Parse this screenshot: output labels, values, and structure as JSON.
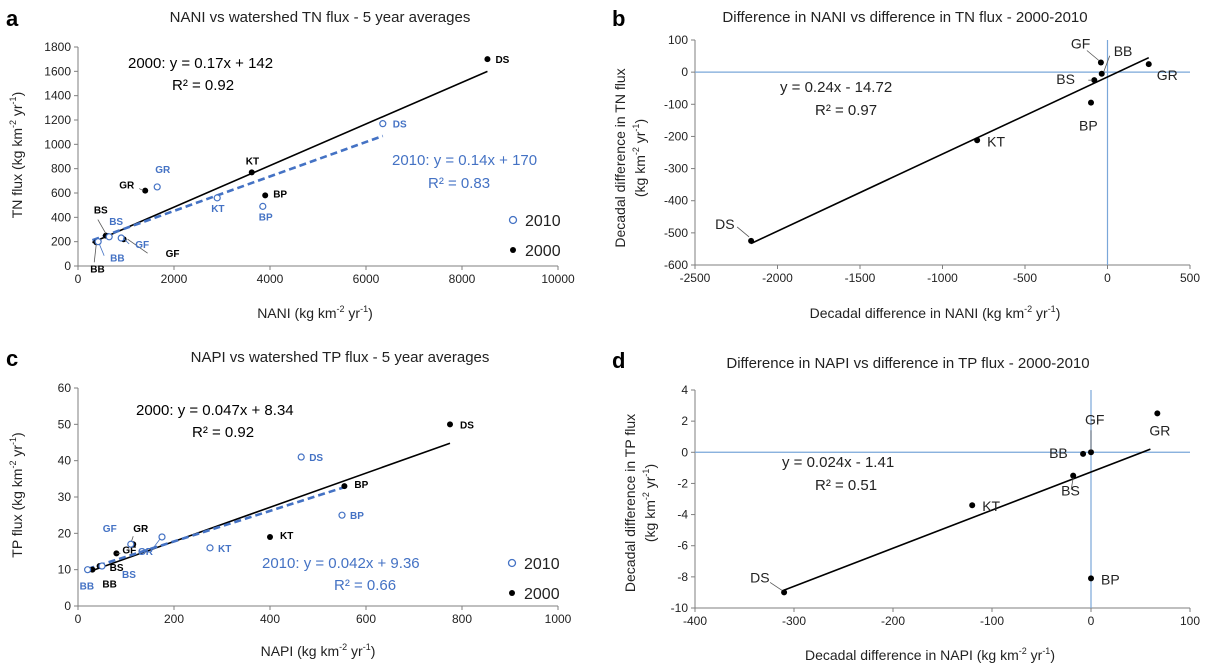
{
  "colors": {
    "y2000": "#000000",
    "y2010": "#4472c4",
    "ref": "#7aa7d9",
    "axis": "#7f7f7f"
  },
  "legend": {
    "y2010": "2010",
    "y2000": "2000"
  },
  "chart_data": [
    {
      "id": "a",
      "type": "scatter",
      "letter": "a",
      "title": "NANI vs watershed TN flux  - 5 year averages",
      "xlabel_main": "NANI (kg km",
      "xlabel_sup1": "-2",
      "xlabel_mid": " yr",
      "xlabel_sup2": "-1",
      "xlabel_end": ")",
      "ylabel_main": "TN flux (kg km",
      "ylabel_sup1": "-2",
      "ylabel_mid": " yr",
      "ylabel_sup2": "-1",
      "ylabel_end": ")",
      "xlim": [
        0,
        10000
      ],
      "ylim": [
        0,
        1800
      ],
      "xticks": [
        0,
        2000,
        4000,
        6000,
        8000,
        10000
      ],
      "yticks": [
        0,
        200,
        400,
        600,
        800,
        1000,
        1200,
        1400,
        1600,
        1800
      ],
      "series": [
        {
          "name": "2000",
          "points": [
            {
              "label": "DS",
              "x": 8530,
              "y": 1700
            },
            {
              "label": "KT",
              "x": 3620,
              "y": 770
            },
            {
              "label": "BP",
              "x": 3900,
              "y": 580
            },
            {
              "label": "GR",
              "x": 1400,
              "y": 620
            },
            {
              "label": "BS",
              "x": 580,
              "y": 250
            },
            {
              "label": "GF",
              "x": 950,
              "y": 220
            },
            {
              "label": "BB",
              "x": 380,
              "y": 195
            }
          ]
        },
        {
          "name": "2010",
          "points": [
            {
              "label": "DS",
              "x": 6350,
              "y": 1170
            },
            {
              "label": "GR",
              "x": 1650,
              "y": 650
            },
            {
              "label": "KT",
              "x": 2900,
              "y": 560
            },
            {
              "label": "BP",
              "x": 3850,
              "y": 490
            },
            {
              "label": "BS",
              "x": 650,
              "y": 240
            },
            {
              "label": "GF",
              "x": 900,
              "y": 230
            },
            {
              "label": "BB",
              "x": 420,
              "y": 200
            }
          ]
        }
      ],
      "fits": [
        {
          "series": "2000",
          "eq": "2000: y = 0.17x + 142",
          "r2": "R² = 0.92",
          "x0": 300,
          "y0": 193,
          "x1": 8530,
          "y1": 1600
        },
        {
          "series": "2010",
          "eq": "2010: y = 0.14x + 170",
          "r2": "R² = 0.83",
          "x0": 300,
          "y0": 212,
          "x1": 6350,
          "y1": 1069
        }
      ]
    },
    {
      "id": "b",
      "type": "scatter",
      "letter": "b",
      "title": "Difference in NANI vs difference in TN flux - 2000-2010",
      "xlabel_main": "Decadal difference in NANI (kg km",
      "xlabel_sup1": "-2",
      "xlabel_mid": " yr",
      "xlabel_sup2": "-1",
      "xlabel_end": ")",
      "ylabel_line1": "Decadal difference in TN flux",
      "ylabel_main": "(kg km",
      "ylabel_sup1": "-2",
      "ylabel_mid": " yr",
      "ylabel_sup2": "-1",
      "ylabel_end": ")",
      "xlim": [
        -2500,
        500
      ],
      "ylim": [
        -600,
        100
      ],
      "xticks": [
        -2500,
        -2000,
        -1500,
        -1000,
        -500,
        0,
        500
      ],
      "yticks": [
        -600,
        -500,
        -400,
        -300,
        -200,
        -100,
        0,
        100
      ],
      "series": [
        {
          "name": "difference",
          "points": [
            {
              "label": "DS",
              "x": -2160,
              "y": -525
            },
            {
              "label": "KT",
              "x": -790,
              "y": -212
            },
            {
              "label": "BP",
              "x": -100,
              "y": -95
            },
            {
              "label": "BS",
              "x": -80,
              "y": -25
            },
            {
              "label": "GF",
              "x": -40,
              "y": 30
            },
            {
              "label": "BB",
              "x": -35,
              "y": -5
            },
            {
              "label": "GR",
              "x": 250,
              "y": 25
            }
          ]
        }
      ],
      "fits": [
        {
          "series": "difference",
          "eq": "y = 0.24x - 14.72",
          "r2": "R² = 0.97",
          "x0": -2160,
          "y0": -533,
          "x1": 250,
          "y1": 45
        }
      ]
    },
    {
      "id": "c",
      "type": "scatter",
      "letter": "c",
      "title": "NAPI vs watershed TP flux  - 5 year averages",
      "xlabel_main": "NAPI (kg km",
      "xlabel_sup1": "-2",
      "xlabel_mid": " yr",
      "xlabel_sup2": "-1",
      "xlabel_end": ")",
      "ylabel_main": "TP flux (kg km",
      "ylabel_sup1": "-2",
      "ylabel_mid": " yr",
      "ylabel_sup2": "-1",
      "ylabel_end": ")",
      "xlim": [
        0,
        1000
      ],
      "ylim": [
        0,
        60
      ],
      "xticks": [
        0,
        200,
        400,
        600,
        800,
        1000
      ],
      "yticks": [
        0,
        10,
        20,
        30,
        40,
        50,
        60
      ],
      "series": [
        {
          "name": "2000",
          "points": [
            {
              "label": "DS",
              "x": 775,
              "y": 50
            },
            {
              "label": "BP",
              "x": 555,
              "y": 33
            },
            {
              "label": "KT",
              "x": 400,
              "y": 19
            },
            {
              "label": "GR",
              "x": 115,
              "y": 17
            },
            {
              "label": "GF",
              "x": 80,
              "y": 14.5
            },
            {
              "label": "BS",
              "x": 45,
              "y": 11
            },
            {
              "label": "BB",
              "x": 30,
              "y": 10
            }
          ]
        },
        {
          "name": "2010",
          "points": [
            {
              "label": "DS",
              "x": 465,
              "y": 41
            },
            {
              "label": "BP",
              "x": 550,
              "y": 25
            },
            {
              "label": "KT",
              "x": 275,
              "y": 16
            },
            {
              "label": "GR",
              "x": 175,
              "y": 19
            },
            {
              "label": "GF",
              "x": 110,
              "y": 17
            },
            {
              "label": "BS",
              "x": 50,
              "y": 11
            },
            {
              "label": "BB",
              "x": 20,
              "y": 10
            }
          ]
        }
      ],
      "fits": [
        {
          "series": "2000",
          "eq": "2000: y = 0.047x + 8.34",
          "r2": "R² = 0.92",
          "x0": 20,
          "y0": 9.3,
          "x1": 775,
          "y1": 44.8
        },
        {
          "series": "2010",
          "eq": "2010: y = 0.042x + 9.36",
          "r2": "R² = 0.66",
          "x0": 20,
          "y0": 10.2,
          "x1": 555,
          "y1": 32.7
        }
      ]
    },
    {
      "id": "d",
      "type": "scatter",
      "letter": "d",
      "title": "Difference in NAPI vs difference in TP flux - 2000-2010",
      "xlabel_main": "Decadal difference in NAPI (kg km",
      "xlabel_sup1": "-2",
      "xlabel_mid": " yr",
      "xlabel_sup2": "-1",
      "xlabel_end": ")",
      "ylabel_line1": "Decadal difference in TP flux",
      "ylabel_main": "(kg km",
      "ylabel_sup1": "-2",
      "ylabel_mid": " yr",
      "ylabel_sup2": "-1",
      "ylabel_end": ")",
      "xlim": [
        -400,
        100
      ],
      "ylim": [
        -10,
        4
      ],
      "xticks": [
        -400,
        -300,
        -200,
        -100,
        0,
        100
      ],
      "yticks": [
        -10,
        -8,
        -6,
        -4,
        -2,
        0,
        2,
        4
      ],
      "series": [
        {
          "name": "difference",
          "points": [
            {
              "label": "DS",
              "x": -310,
              "y": -9
            },
            {
              "label": "KT",
              "x": -120,
              "y": -3.4
            },
            {
              "label": "BS",
              "x": -18,
              "y": -1.5
            },
            {
              "label": "BB",
              "x": -8,
              "y": -0.1
            },
            {
              "label": "GF",
              "x": 0,
              "y": 0
            },
            {
              "label": "BP",
              "x": 0,
              "y": -8.1
            },
            {
              "label": "GR",
              "x": 67,
              "y": 2.5
            }
          ]
        }
      ],
      "fits": [
        {
          "series": "difference",
          "eq": "y = 0.024x - 1.41",
          "r2": "R² = 0.51",
          "x0": -310,
          "y0": -8.85,
          "x1": 60,
          "y1": 0.2
        }
      ]
    }
  ]
}
